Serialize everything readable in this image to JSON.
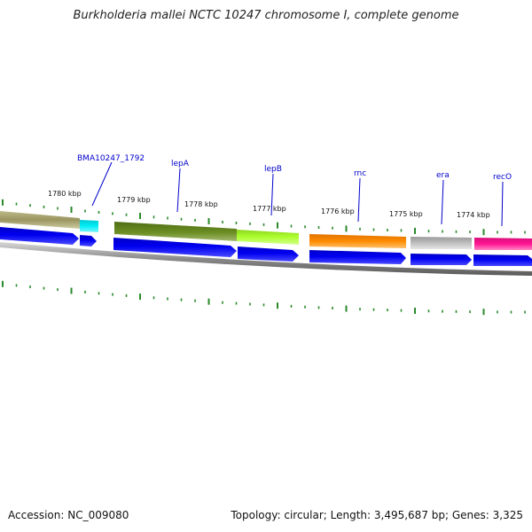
{
  "title": "Burkholderia mallei NCTC 10247 chromosome I, complete genome",
  "footer": {
    "accession": "Accession: NC_009080",
    "summary": "Topology: circular; Length: 3,495,687 bp; Genes: 3,325"
  },
  "colors": {
    "tick": "#2a8a2a",
    "gene_label": "#0000cc",
    "cds_arrow": "#0000ee",
    "backbone": "#888888"
  },
  "kbp_labels": [
    "1780 kbp",
    "1779 kbp",
    "1778 kbp",
    "1777 kbp",
    "1776 kbp",
    "1775 kbp",
    "1774 kbp"
  ],
  "genes": [
    {
      "name": "BMA10247_1792",
      "color": "#00e5ee"
    },
    {
      "name": "lepA",
      "color": "#6b8e23"
    },
    {
      "name": "lepB",
      "color": "#adff2f"
    },
    {
      "name": "rnc",
      "color": "#ff8c00"
    },
    {
      "name": "era",
      "color": "#bebebe"
    },
    {
      "name": "recO",
      "color": "#ff1493"
    }
  ]
}
